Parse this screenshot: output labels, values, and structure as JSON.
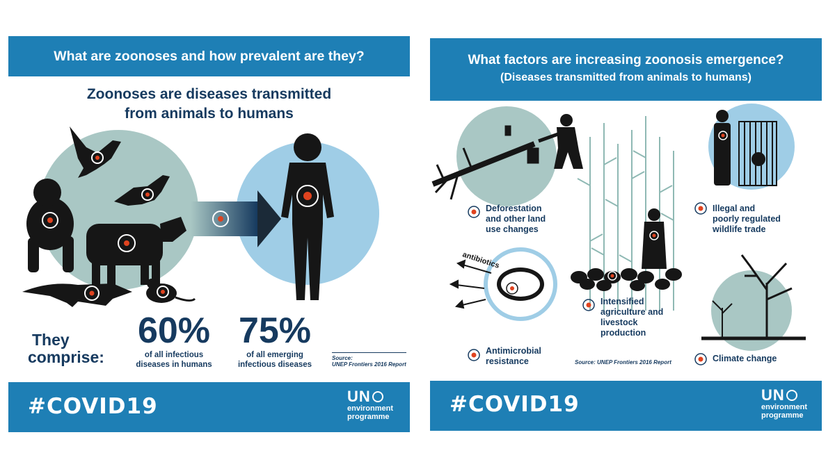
{
  "left": {
    "header": "What are zoonoses and how prevalent are they?",
    "subtitle_line1": "Zoonoses are diseases transmitted",
    "subtitle_line2": "from animals to humans",
    "they_label_line1": "They",
    "they_label_line2": "comprise:",
    "stat1": {
      "value": "60%",
      "line1": "of all infectious",
      "line2": "diseases in humans"
    },
    "stat2": {
      "value": "75%",
      "line1": "of all emerging",
      "line2": "infectious diseases"
    },
    "source_line1": "Source:",
    "source_line2": "UNEP Frontiers 2016 Report",
    "hashtag": "#COVID19",
    "logo_top": "UN",
    "logo_line1": "environment",
    "logo_line2": "programme"
  },
  "right": {
    "header_line1": "What factors are increasing zoonosis emergence?",
    "header_line2": "(Diseases transmitted from animals to humans)",
    "factors": {
      "deforestation": [
        "Deforestation",
        "and other land",
        "use changes"
      ],
      "wildlife": [
        "Illegal and",
        "poorly regulated",
        "wildlife trade"
      ],
      "agriculture": [
        "Intensified",
        "agriculture and",
        "livestock",
        "production"
      ],
      "antimicrobial": [
        "Antimicrobial",
        "resistance"
      ],
      "climate": [
        "Climate change"
      ]
    },
    "antibiotics_label": "antibiotics",
    "source": "Source: UNEP Frontiers 2016 Report",
    "hashtag": "#COVID19",
    "logo_top": "UN",
    "logo_line1": "environment",
    "logo_line2": "programme"
  },
  "colors": {
    "blue": "#1e7fb5",
    "navy": "#163a5f",
    "teal_circle": "#a9c7c4",
    "sky_circle": "#9fcde6",
    "target": "#e0431f"
  }
}
